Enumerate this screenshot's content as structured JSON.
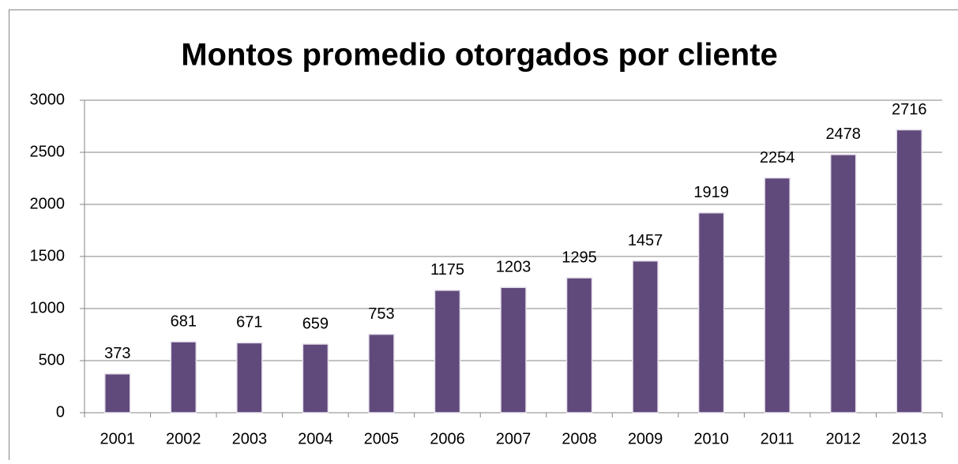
{
  "chart_data": {
    "type": "bar",
    "title": "Montos promedio otorgados por cliente",
    "categories": [
      "2001",
      "2002",
      "2003",
      "2004",
      "2005",
      "2006",
      "2007",
      "2008",
      "2009",
      "2010",
      "2011",
      "2012",
      "2013"
    ],
    "values": [
      373,
      681,
      671,
      659,
      753,
      1175,
      1203,
      1295,
      1457,
      1919,
      2254,
      2478,
      2716
    ],
    "color": "#604a7b",
    "ylim": [
      0,
      3000
    ],
    "yticks": [
      0,
      500,
      1000,
      1500,
      2000,
      2500,
      3000
    ],
    "grid": true
  }
}
